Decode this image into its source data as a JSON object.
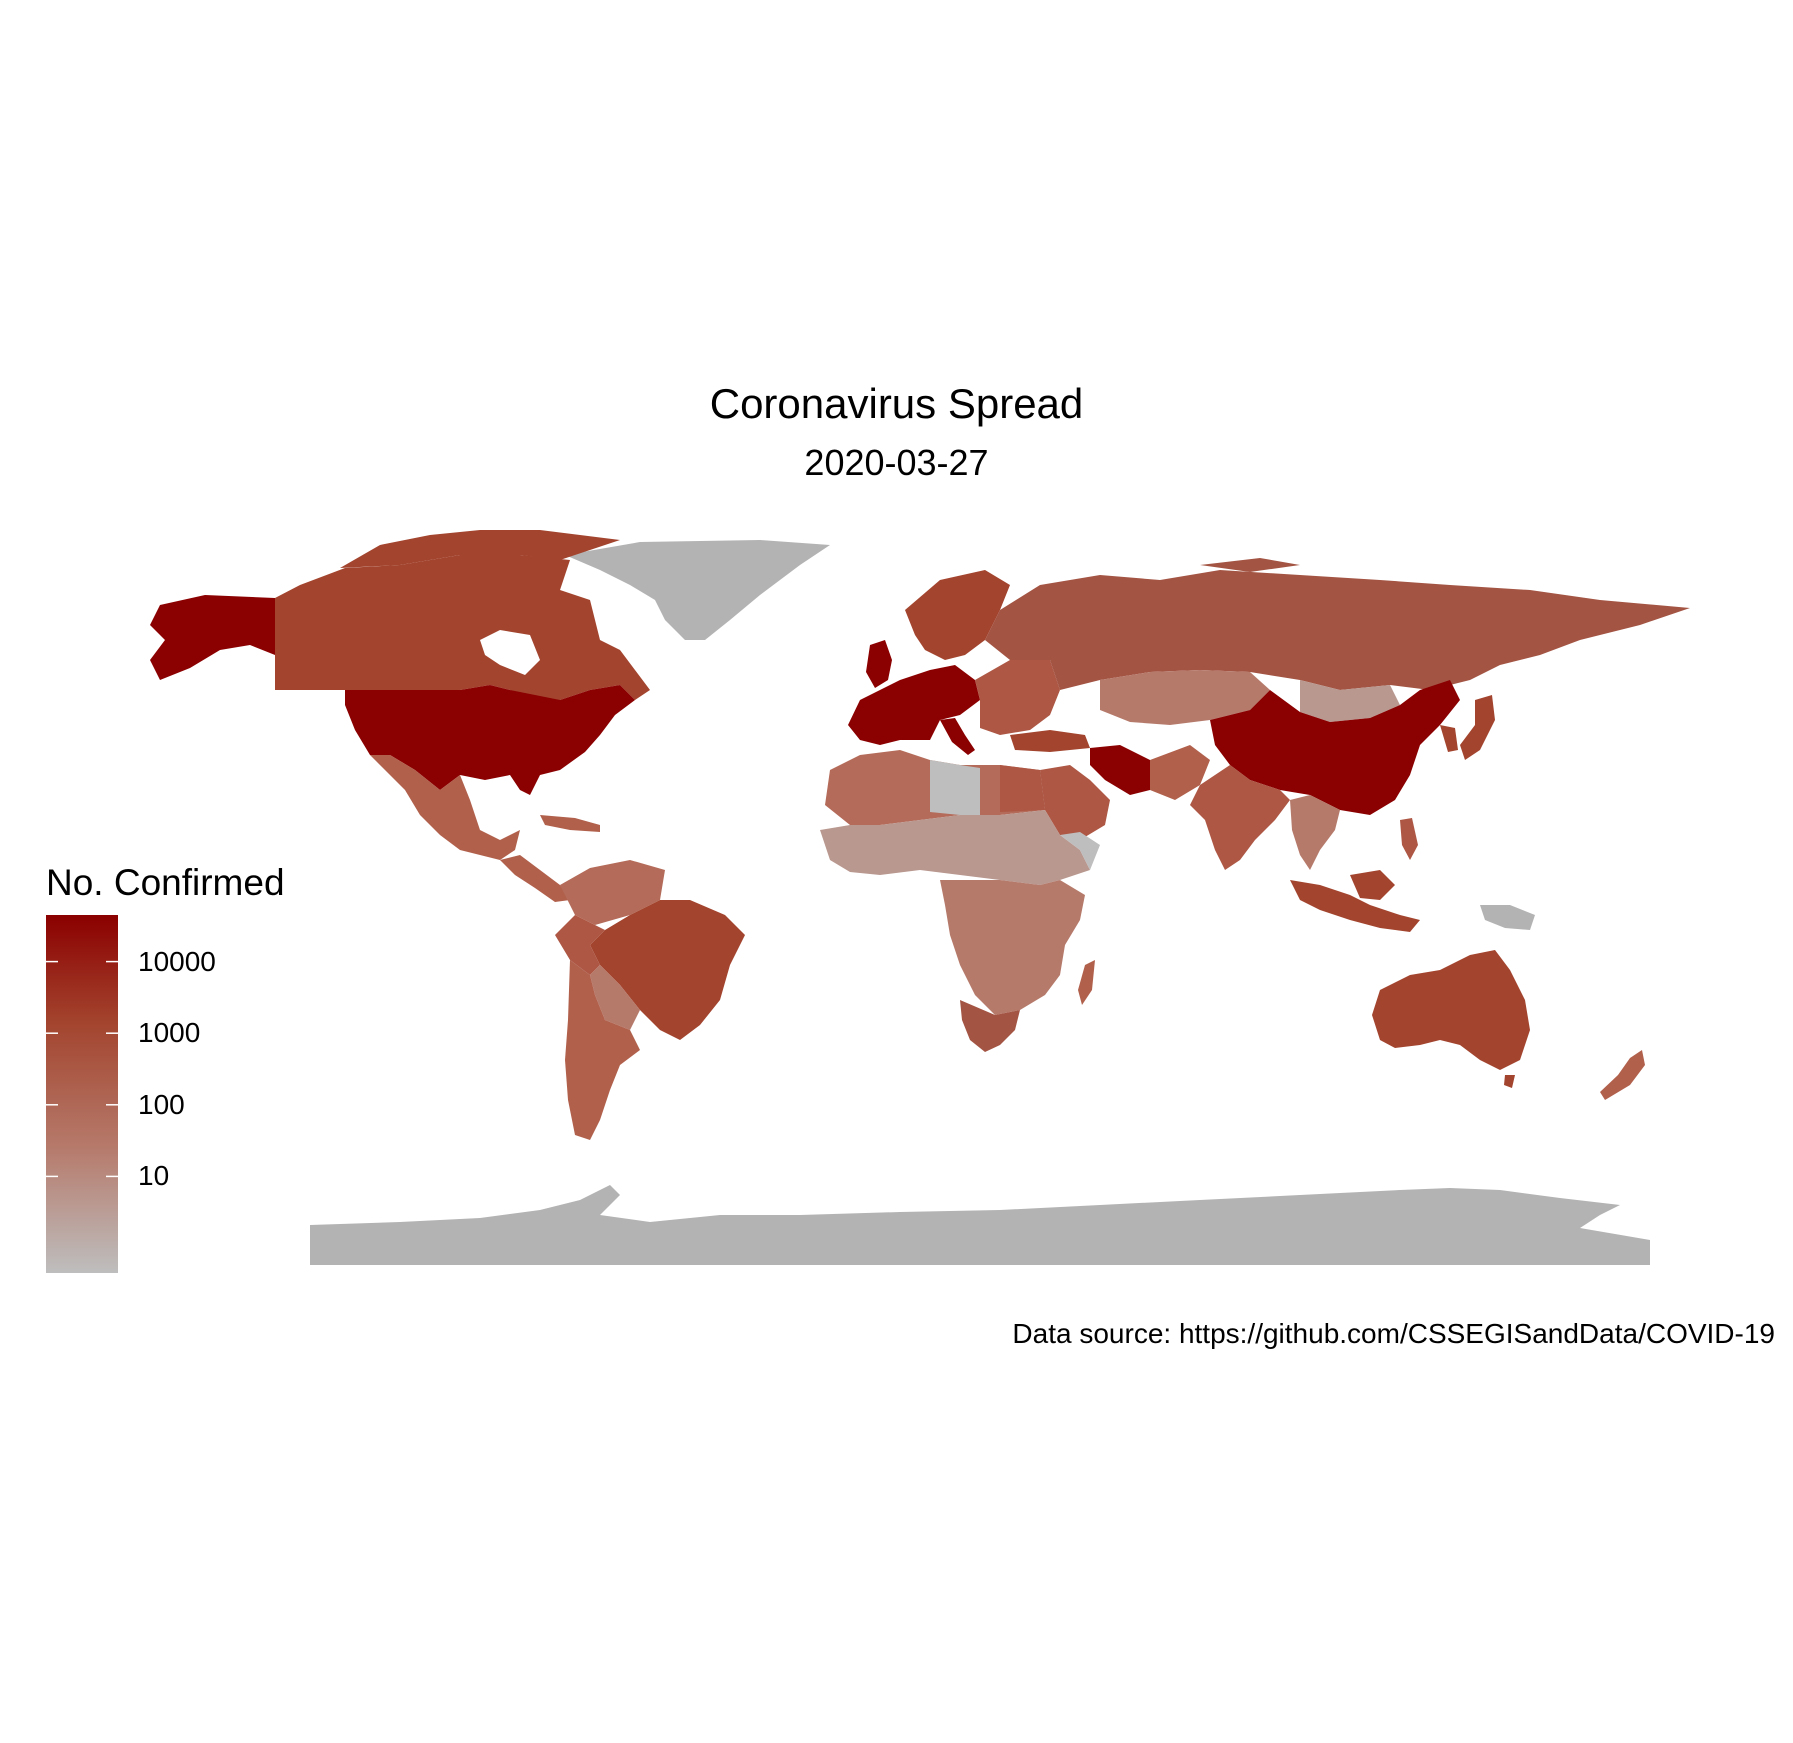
{
  "title": "Coronavirus Spread",
  "subtitle": "2020-03-27",
  "caption": "Data source: https://github.com/CSSEGISandData/COVID-19",
  "legend": {
    "title": "No. Confirmed",
    "scale": "log10",
    "ticks": [
      "10000",
      "1000",
      "100",
      "10"
    ],
    "tick_values": [
      10000,
      1000,
      100,
      10
    ],
    "range": [
      1,
      100000
    ],
    "color_low": "#bebebe",
    "color_high": "#8b0000"
  },
  "colors": {
    "no_data": "#b3b3b3",
    "background": "#ffffff"
  },
  "chart_data": {
    "type": "choropleth",
    "title": "Coronavirus Spread",
    "subtitle": "2020-03-27",
    "value_label": "No. Confirmed",
    "scale": "log10",
    "regions": [
      {
        "name": "United States",
        "value": 100000
      },
      {
        "name": "Italy",
        "value": 86000
      },
      {
        "name": "China",
        "value": 81000
      },
      {
        "name": "Spain",
        "value": 65000
      },
      {
        "name": "Germany",
        "value": 50000
      },
      {
        "name": "France",
        "value": 33000
      },
      {
        "name": "Iran",
        "value": 32000
      },
      {
        "name": "United Kingdom",
        "value": 15000
      },
      {
        "name": "Switzerland",
        "value": 12000
      },
      {
        "name": "Canada",
        "value": 4000
      },
      {
        "name": "Brazil",
        "value": 3000
      },
      {
        "name": "Australia",
        "value": 3000
      },
      {
        "name": "Russia",
        "value": 1000
      },
      {
        "name": "Norway",
        "value": 3500
      },
      {
        "name": "Sweden",
        "value": 3000
      },
      {
        "name": "Turkey",
        "value": 5700
      },
      {
        "name": "South Africa",
        "value": 1000
      },
      {
        "name": "Mexico",
        "value": 600
      },
      {
        "name": "India",
        "value": 800
      },
      {
        "name": "Saudi Arabia",
        "value": 1100
      },
      {
        "name": "Malaysia",
        "value": 2000
      },
      {
        "name": "Indonesia",
        "value": 1000
      },
      {
        "name": "Philippines",
        "value": 700
      },
      {
        "name": "Japan",
        "value": 1500
      },
      {
        "name": "Ecuador",
        "value": 1600
      },
      {
        "name": "Chile",
        "value": 1600
      },
      {
        "name": "Peru",
        "value": 600
      },
      {
        "name": "Colombia",
        "value": 500
      },
      {
        "name": "Argentina",
        "value": 600
      },
      {
        "name": "Egypt",
        "value": 500
      },
      {
        "name": "New Zealand",
        "value": 300
      },
      {
        "name": "Kazakhstan",
        "value": 100
      },
      {
        "name": "Mongolia",
        "value": 12
      },
      {
        "name": "Libya",
        "value": 1
      },
      {
        "name": "Algeria",
        "value": 400
      },
      {
        "name": "Morocco",
        "value": 300
      },
      {
        "name": "Greenland",
        "value": 0
      },
      {
        "name": "Antarctica",
        "value": 0
      }
    ]
  }
}
